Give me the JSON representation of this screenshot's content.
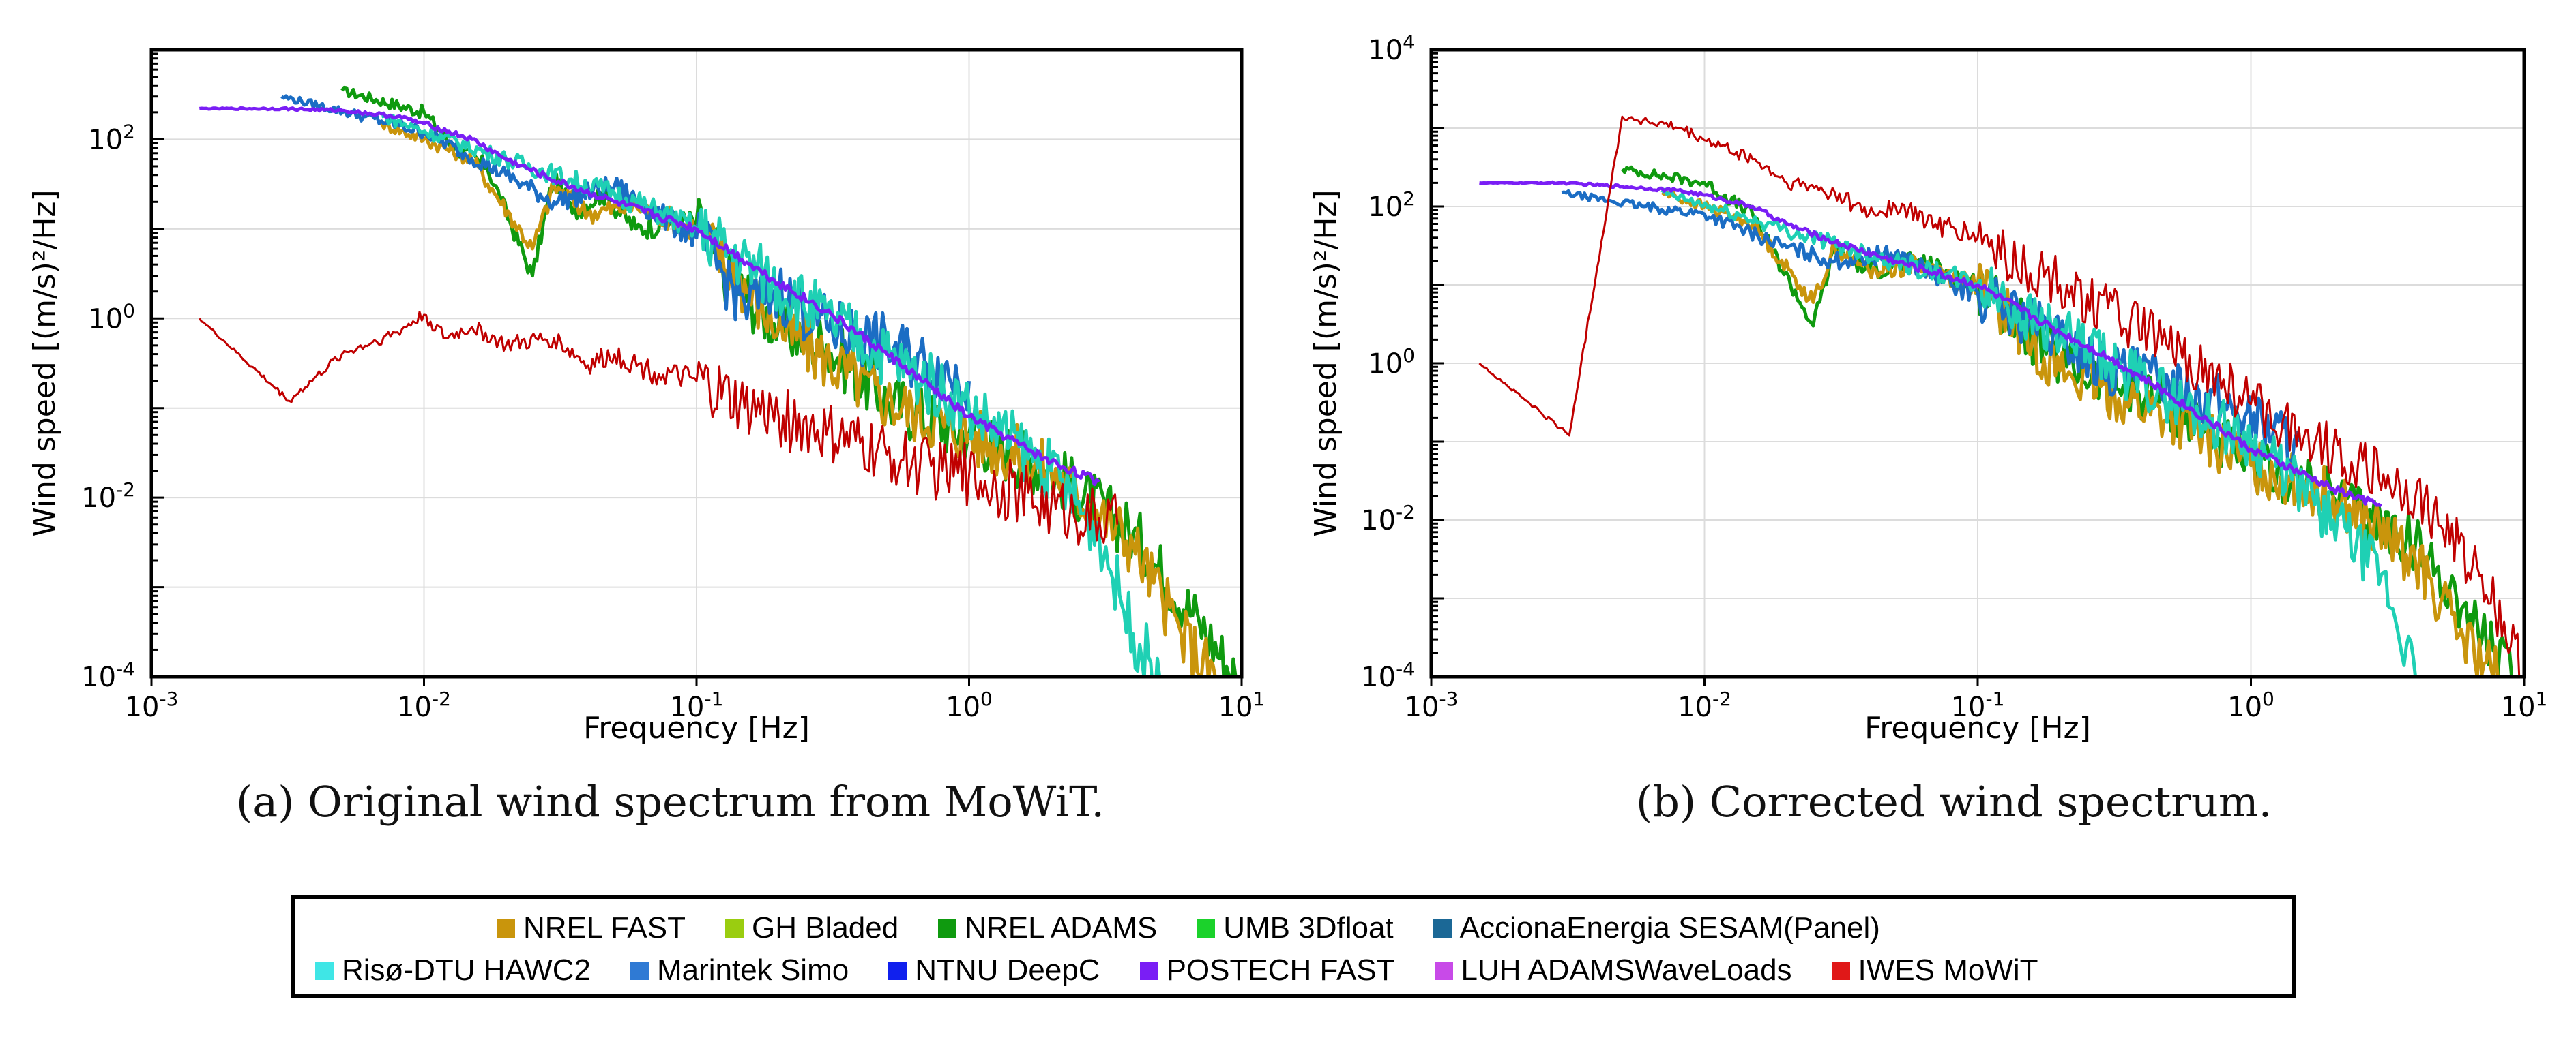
{
  "chart_data": [
    {
      "type": "line",
      "panel": "a",
      "caption": "(a)  Original wind spectrum from MoWiT.",
      "xlabel": "Frequency [Hz]",
      "ylabel": "Wind speed [(m/s)²/Hz]",
      "xscale": "log",
      "yscale": "log",
      "xlim": [
        0.001,
        10
      ],
      "ylim": [
        0.0001,
        1000
      ],
      "x_ticks": [
        {
          "base": "10",
          "exp": "-3"
        },
        {
          "base": "10",
          "exp": "-2"
        },
        {
          "base": "10",
          "exp": "-1"
        },
        {
          "base": "10",
          "exp": "0"
        },
        {
          "base": "10",
          "exp": "1"
        }
      ],
      "y_ticks": [
        {
          "base": "10",
          "exp": "-4",
          "value": 0.0001
        },
        {
          "base": "10",
          "exp": "-2",
          "value": 0.01
        },
        {
          "base": "10",
          "exp": "0",
          "value": 1
        },
        {
          "base": "10",
          "exp": "2",
          "value": 100
        }
      ],
      "grid": true,
      "series": [
        {
          "name": "NREL ADAMS",
          "color": "#0f9a0f",
          "x": [
            0.005,
            0.01,
            0.013,
            0.017,
            0.025,
            0.03,
            0.035,
            0.045,
            0.06,
            0.08,
            0.1,
            0.13,
            0.2,
            0.3,
            0.5,
            1,
            2,
            4,
            7,
            9.5
          ],
          "y": [
            350,
            200,
            80,
            50,
            3,
            40,
            15,
            25,
            10,
            12,
            12,
            3,
            0.8,
            0.5,
            0.12,
            0.05,
            0.02,
            0.004,
            0.0004,
            0.0001
          ]
        },
        {
          "name": "NREL FAST",
          "color": "#c9950c",
          "x": [
            0.007,
            0.01,
            0.015,
            0.025,
            0.03,
            0.04,
            0.06,
            0.1,
            0.2,
            0.5,
            1,
            2,
            4,
            6,
            8
          ],
          "y": [
            150,
            100,
            60,
            6,
            30,
            15,
            18,
            10,
            0.8,
            0.12,
            0.05,
            0.02,
            0.003,
            0.0003,
            0.0001
          ]
        },
        {
          "name": "Marintek Simo",
          "color": "#1b6dc4",
          "x": [
            0.003,
            0.006,
            0.01,
            0.02,
            0.03,
            0.05,
            0.08,
            0.1,
            0.15,
            0.2,
            0.3,
            0.5,
            0.7,
            1
          ],
          "y": [
            300,
            180,
            120,
            40,
            20,
            30,
            12,
            8,
            1.5,
            2,
            0.8,
            0.5,
            0.3,
            0.2
          ]
        },
        {
          "name": "Risø-DTU HAWC2",
          "color": "#1fd0b4",
          "x": [
            0.007,
            0.02,
            0.05,
            0.1,
            0.3,
            1,
            2,
            3,
            4,
            5
          ],
          "y": [
            180,
            60,
            25,
            10,
            1,
            0.1,
            0.02,
            0.004,
            0.0003,
            0.0001
          ]
        },
        {
          "name": "POSTECH FAST",
          "color": "#7a1ef5",
          "x": [
            0.0015,
            0.003,
            0.005,
            0.008,
            0.01,
            0.015,
            0.02,
            0.03,
            0.05,
            0.1,
            0.2,
            0.3,
            0.5,
            1,
            2,
            3
          ],
          "y": [
            220,
            220,
            210,
            180,
            150,
            100,
            60,
            35,
            20,
            10,
            2.5,
            1.2,
            0.4,
            0.08,
            0.025,
            0.015
          ]
        },
        {
          "name": "IWES MoWiT",
          "color": "#c00000",
          "x": [
            0.0015,
            0.0032,
            0.005,
            0.008,
            0.01,
            0.012,
            0.015,
            0.02,
            0.03,
            0.04,
            0.05,
            0.07,
            0.1,
            0.15,
            0.2,
            0.3,
            0.5,
            0.8,
            1,
            2,
            3.5
          ],
          "y": [
            1,
            0.12,
            0.4,
            0.7,
            1.1,
            0.6,
            0.8,
            0.5,
            0.6,
            0.3,
            0.4,
            0.25,
            0.2,
            0.1,
            0.08,
            0.05,
            0.03,
            0.02,
            0.018,
            0.008,
            0.005
          ]
        }
      ]
    },
    {
      "type": "line",
      "panel": "b",
      "caption": "(b)  Corrected wind spectrum.",
      "xlabel": "Frequency [Hz]",
      "ylabel": "Wind speed [(m/s)²/Hz]",
      "xscale": "log",
      "yscale": "log",
      "xlim": [
        0.001,
        10
      ],
      "ylim": [
        0.0001,
        10000
      ],
      "x_ticks": [
        {
          "base": "10",
          "exp": "-3"
        },
        {
          "base": "10",
          "exp": "-2"
        },
        {
          "base": "10",
          "exp": "-1"
        },
        {
          "base": "10",
          "exp": "0"
        },
        {
          "base": "10",
          "exp": "1"
        }
      ],
      "y_ticks": [
        {
          "base": "10",
          "exp": "-4",
          "value": 0.0001
        },
        {
          "base": "10",
          "exp": "-2",
          "value": 0.01
        },
        {
          "base": "10",
          "exp": "0",
          "value": 1
        },
        {
          "base": "10",
          "exp": "2",
          "value": 100
        },
        {
          "base": "10",
          "exp": "4",
          "value": 10000
        }
      ],
      "grid": true,
      "series": [
        {
          "name": "NREL ADAMS",
          "color": "#0f9a0f",
          "x": [
            0.005,
            0.01,
            0.015,
            0.025,
            0.03,
            0.04,
            0.06,
            0.1,
            0.2,
            0.5,
            1,
            2,
            4,
            6,
            9
          ],
          "y": [
            300,
            200,
            80,
            3,
            30,
            15,
            20,
            10,
            1,
            0.3,
            0.05,
            0.02,
            0.005,
            0.0008,
            0.0001
          ]
        },
        {
          "name": "NREL FAST",
          "color": "#c9950c",
          "x": [
            0.007,
            0.01,
            0.015,
            0.025,
            0.03,
            0.04,
            0.06,
            0.1,
            0.2,
            0.5,
            1,
            2,
            4,
            6,
            8
          ],
          "y": [
            150,
            100,
            60,
            6,
            30,
            15,
            18,
            10,
            0.8,
            0.2,
            0.05,
            0.02,
            0.003,
            0.0003,
            0.0001
          ]
        },
        {
          "name": "Marintek Simo",
          "color": "#1b6dc4",
          "x": [
            0.003,
            0.006,
            0.01,
            0.02,
            0.03,
            0.05,
            0.08,
            0.1,
            0.2,
            0.3,
            0.5,
            0.8,
            1.5
          ],
          "y": [
            150,
            100,
            80,
            30,
            20,
            25,
            10,
            8,
            2,
            0.8,
            0.6,
            0.3,
            0.1
          ]
        },
        {
          "name": "Risø-DTU HAWC2",
          "color": "#1fd0b4",
          "x": [
            0.007,
            0.02,
            0.05,
            0.1,
            0.3,
            1,
            2,
            3,
            4
          ],
          "y": [
            150,
            50,
            20,
            10,
            1,
            0.1,
            0.01,
            0.002,
            0.0001
          ]
        },
        {
          "name": "POSTECH FAST",
          "color": "#7a1ef5",
          "x": [
            0.0015,
            0.003,
            0.005,
            0.008,
            0.01,
            0.015,
            0.02,
            0.03,
            0.05,
            0.1,
            0.2,
            0.3,
            0.5,
            1,
            2,
            3
          ],
          "y": [
            200,
            200,
            180,
            160,
            140,
            100,
            60,
            35,
            20,
            10,
            2.5,
            1.2,
            0.4,
            0.08,
            0.025,
            0.015
          ]
        },
        {
          "name": "IWES MoWiT",
          "color": "#c00000",
          "x": [
            0.0015,
            0.0032,
            0.005,
            0.008,
            0.01,
            0.015,
            0.02,
            0.03,
            0.04,
            0.05,
            0.07,
            0.1,
            0.15,
            0.2,
            0.3,
            0.5,
            1,
            2,
            4,
            7,
            10
          ],
          "y": [
            1,
            0.12,
            1400,
            1000,
            700,
            400,
            200,
            150,
            80,
            100,
            60,
            40,
            15,
            10,
            5,
            1.5,
            0.3,
            0.08,
            0.02,
            0.002,
            0.0001
          ]
        }
      ]
    }
  ],
  "legend": [
    {
      "label": "NREL FAST",
      "color": "#c9950c"
    },
    {
      "label": "GH Bladed",
      "color": "#9acd10"
    },
    {
      "label": "NREL ADAMS",
      "color": "#0f9a0f"
    },
    {
      "label": "UMB 3Dfloat",
      "color": "#1bd22b"
    },
    {
      "label": "AccionaEnergia SESAM(Panel)",
      "color": "#1b6896"
    },
    {
      "label": "Risø-DTU HAWC2",
      "color": "#3fe6e6"
    },
    {
      "label": "Marintek Simo",
      "color": "#2f7ad4"
    },
    {
      "label": "NTNU DeepC",
      "color": "#1020ee"
    },
    {
      "label": "POSTECH FAST",
      "color": "#7a1ef5"
    },
    {
      "label": "LUH ADAMSWaveLoads",
      "color": "#c84ae8"
    },
    {
      "label": "IWES MoWiT",
      "color": "#e01818"
    }
  ]
}
